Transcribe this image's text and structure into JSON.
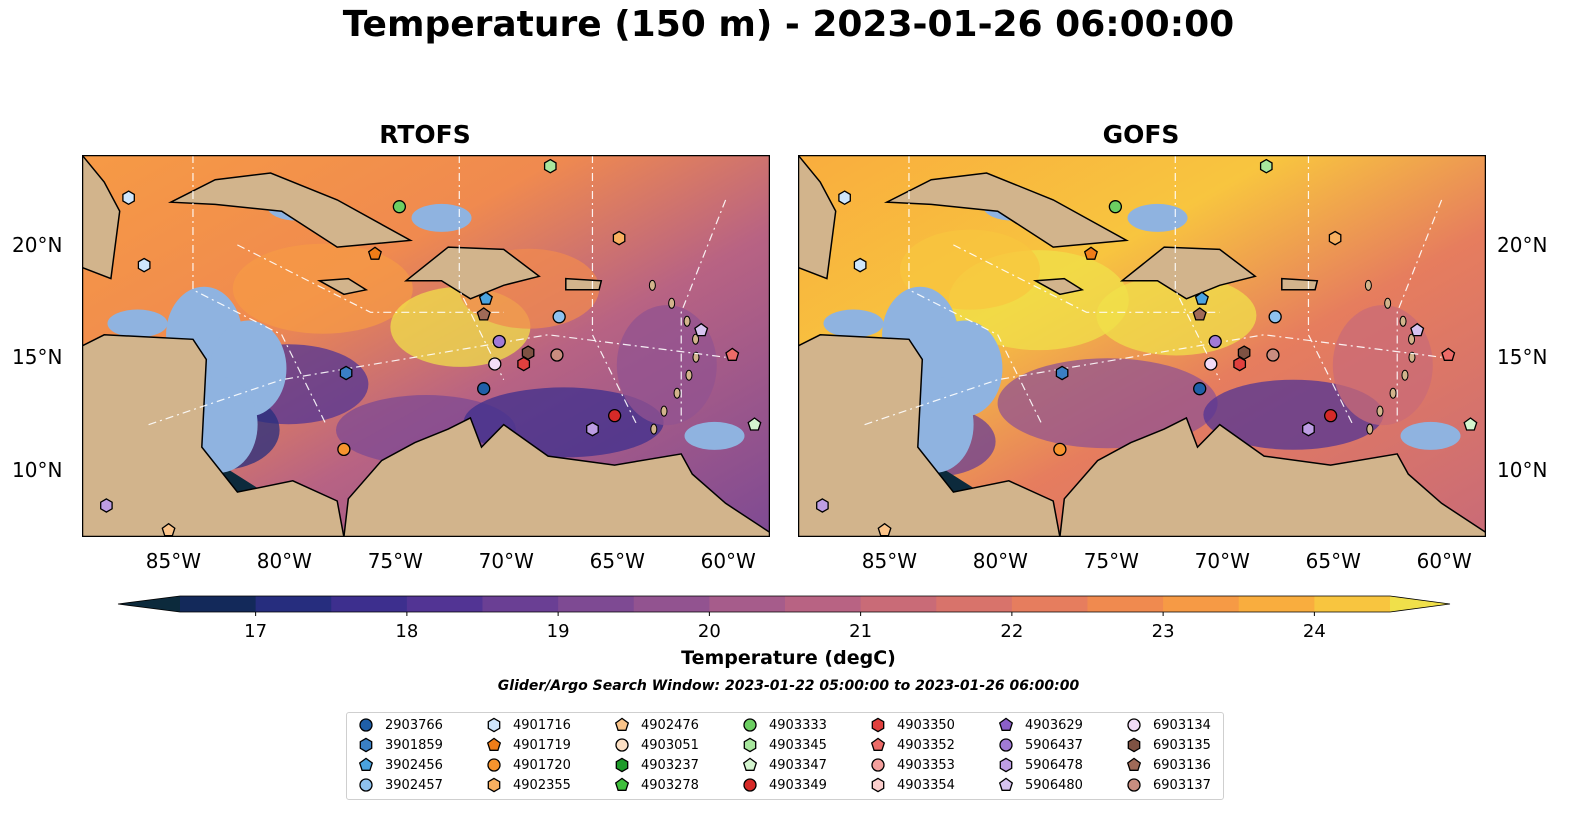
{
  "title": "Temperature (150 m) - 2023-01-26 06:00:00",
  "panels": [
    {
      "title": "RTOFS"
    },
    {
      "title": "GOFS"
    }
  ],
  "axes": {
    "lon_ticks": [
      "85°W",
      "80°W",
      "75°W",
      "70°W",
      "65°W",
      "60°W"
    ],
    "lon_values": [
      -85,
      -80,
      -75,
      -70,
      -65,
      -60
    ],
    "lat_ticks": [
      "20°N",
      "15°N",
      "10°N"
    ],
    "lat_values": [
      20,
      15,
      10
    ],
    "lon_range": [
      -89,
      -58
    ],
    "lat_range": [
      7,
      24
    ]
  },
  "colorbar": {
    "label": "Temperature (degC)",
    "ticks": [
      "17",
      "18",
      "19",
      "20",
      "21",
      "22",
      "23",
      "24"
    ],
    "min": 16.5,
    "max": 24.5,
    "step": 0.5,
    "colors": [
      "#0c2a3c",
      "#13295a",
      "#262d7e",
      "#3d2f8e",
      "#523494",
      "#6a3f94",
      "#7e4a93",
      "#925390",
      "#a65c8b",
      "#b86383",
      "#c96b77",
      "#d8736b",
      "#e67d5e",
      "#f08a4f",
      "#f69a45",
      "#f9ad3e",
      "#f8c53f",
      "#f0e04a"
    ]
  },
  "search_window": "Glider/Argo Search Window: 2023-01-22 05:00:00 to 2023-01-26 06:00:00",
  "legend": [
    {
      "id": "2903766",
      "shape": "circle",
      "color": "#1f5fa8"
    },
    {
      "id": "3901859",
      "shape": "hexagon",
      "color": "#3a7fc4"
    },
    {
      "id": "3902456",
      "shape": "pentagon",
      "color": "#4aa3df"
    },
    {
      "id": "3902457",
      "shape": "circle",
      "color": "#8ec2ef"
    },
    {
      "id": "4901716",
      "shape": "hexagon",
      "color": "#cfe6fb"
    },
    {
      "id": "4901719",
      "shape": "pentagon",
      "color": "#f07d18"
    },
    {
      "id": "4901720",
      "shape": "circle",
      "color": "#f7942e"
    },
    {
      "id": "4902355",
      "shape": "hexagon",
      "color": "#f9b060"
    },
    {
      "id": "4902476",
      "shape": "pentagon",
      "color": "#fbc48a"
    },
    {
      "id": "4903051",
      "shape": "circle",
      "color": "#fde0c4"
    },
    {
      "id": "4903237",
      "shape": "hexagon",
      "color": "#1e9b2a"
    },
    {
      "id": "4903278",
      "shape": "pentagon",
      "color": "#3fbf3c"
    },
    {
      "id": "4903333",
      "shape": "circle",
      "color": "#6ccf62"
    },
    {
      "id": "4903345",
      "shape": "hexagon",
      "color": "#a8e79e"
    },
    {
      "id": "4903347",
      "shape": "pentagon",
      "color": "#d4f5cf"
    },
    {
      "id": "4903349",
      "shape": "circle",
      "color": "#d62a28"
    },
    {
      "id": "4903350",
      "shape": "hexagon",
      "color": "#e0403e"
    },
    {
      "id": "4903352",
      "shape": "pentagon",
      "color": "#ec6b68"
    },
    {
      "id": "4903353",
      "shape": "circle",
      "color": "#f4a09d"
    },
    {
      "id": "4903354",
      "shape": "hexagon",
      "color": "#fbcfcd"
    },
    {
      "id": "4903629",
      "shape": "pentagon",
      "color": "#8b5fc7"
    },
    {
      "id": "5906437",
      "shape": "circle",
      "color": "#a17ad6"
    },
    {
      "id": "5906478",
      "shape": "hexagon",
      "color": "#bd9de3"
    },
    {
      "id": "5906480",
      "shape": "pentagon",
      "color": "#d7c3f0"
    },
    {
      "id": "6903134",
      "shape": "circle",
      "color": "#f2dcf7"
    },
    {
      "id": "6903135",
      "shape": "hexagon",
      "color": "#7e5243"
    },
    {
      "id": "6903136",
      "shape": "pentagon",
      "color": "#a06a58"
    },
    {
      "id": "6903137",
      "shape": "circle",
      "color": "#c98d80"
    }
  ],
  "platforms": [
    {
      "id": "4901716",
      "lon": -86.9,
      "lat": 22.1
    },
    {
      "id": "4901716",
      "lon": -86.2,
      "lat": 19.1
    },
    {
      "id": "4903333",
      "lon": -74.7,
      "lat": 21.7
    },
    {
      "id": "4903345",
      "lon": -67.9,
      "lat": 23.5
    },
    {
      "id": "4901719",
      "lon": -75.8,
      "lat": 19.6
    },
    {
      "id": "4902355",
      "lon": -64.8,
      "lat": 20.3
    },
    {
      "id": "3902456",
      "lon": -70.8,
      "lat": 17.6
    },
    {
      "id": "6903136",
      "lon": -70.9,
      "lat": 16.9
    },
    {
      "id": "3902457",
      "lon": -67.5,
      "lat": 16.8
    },
    {
      "id": "5906437",
      "lon": -70.2,
      "lat": 15.7
    },
    {
      "id": "6903135",
      "lon": -68.9,
      "lat": 15.2
    },
    {
      "id": "6903137",
      "lon": -67.6,
      "lat": 15.1
    },
    {
      "id": "6903134",
      "lon": -70.4,
      "lat": 14.7
    },
    {
      "id": "4903350",
      "lon": -69.1,
      "lat": 14.7
    },
    {
      "id": "3901859",
      "lon": -77.1,
      "lat": 14.3
    },
    {
      "id": "2903766",
      "lon": -70.9,
      "lat": 13.6
    },
    {
      "id": "4903349",
      "lon": -65.0,
      "lat": 12.4
    },
    {
      "id": "5906478",
      "lon": -66.0,
      "lat": 11.8
    },
    {
      "id": "4901720",
      "lon": -77.2,
      "lat": 10.9
    },
    {
      "id": "4903352",
      "lon": -59.7,
      "lat": 15.1
    },
    {
      "id": "4903347",
      "lon": -58.7,
      "lat": 12.0
    },
    {
      "id": "5906480",
      "lon": -61.1,
      "lat": 16.2
    },
    {
      "id": "5906478",
      "lon": -87.9,
      "lat": 8.4
    },
    {
      "id": "4902476",
      "lon": -85.1,
      "lat": 7.3
    }
  ]
}
